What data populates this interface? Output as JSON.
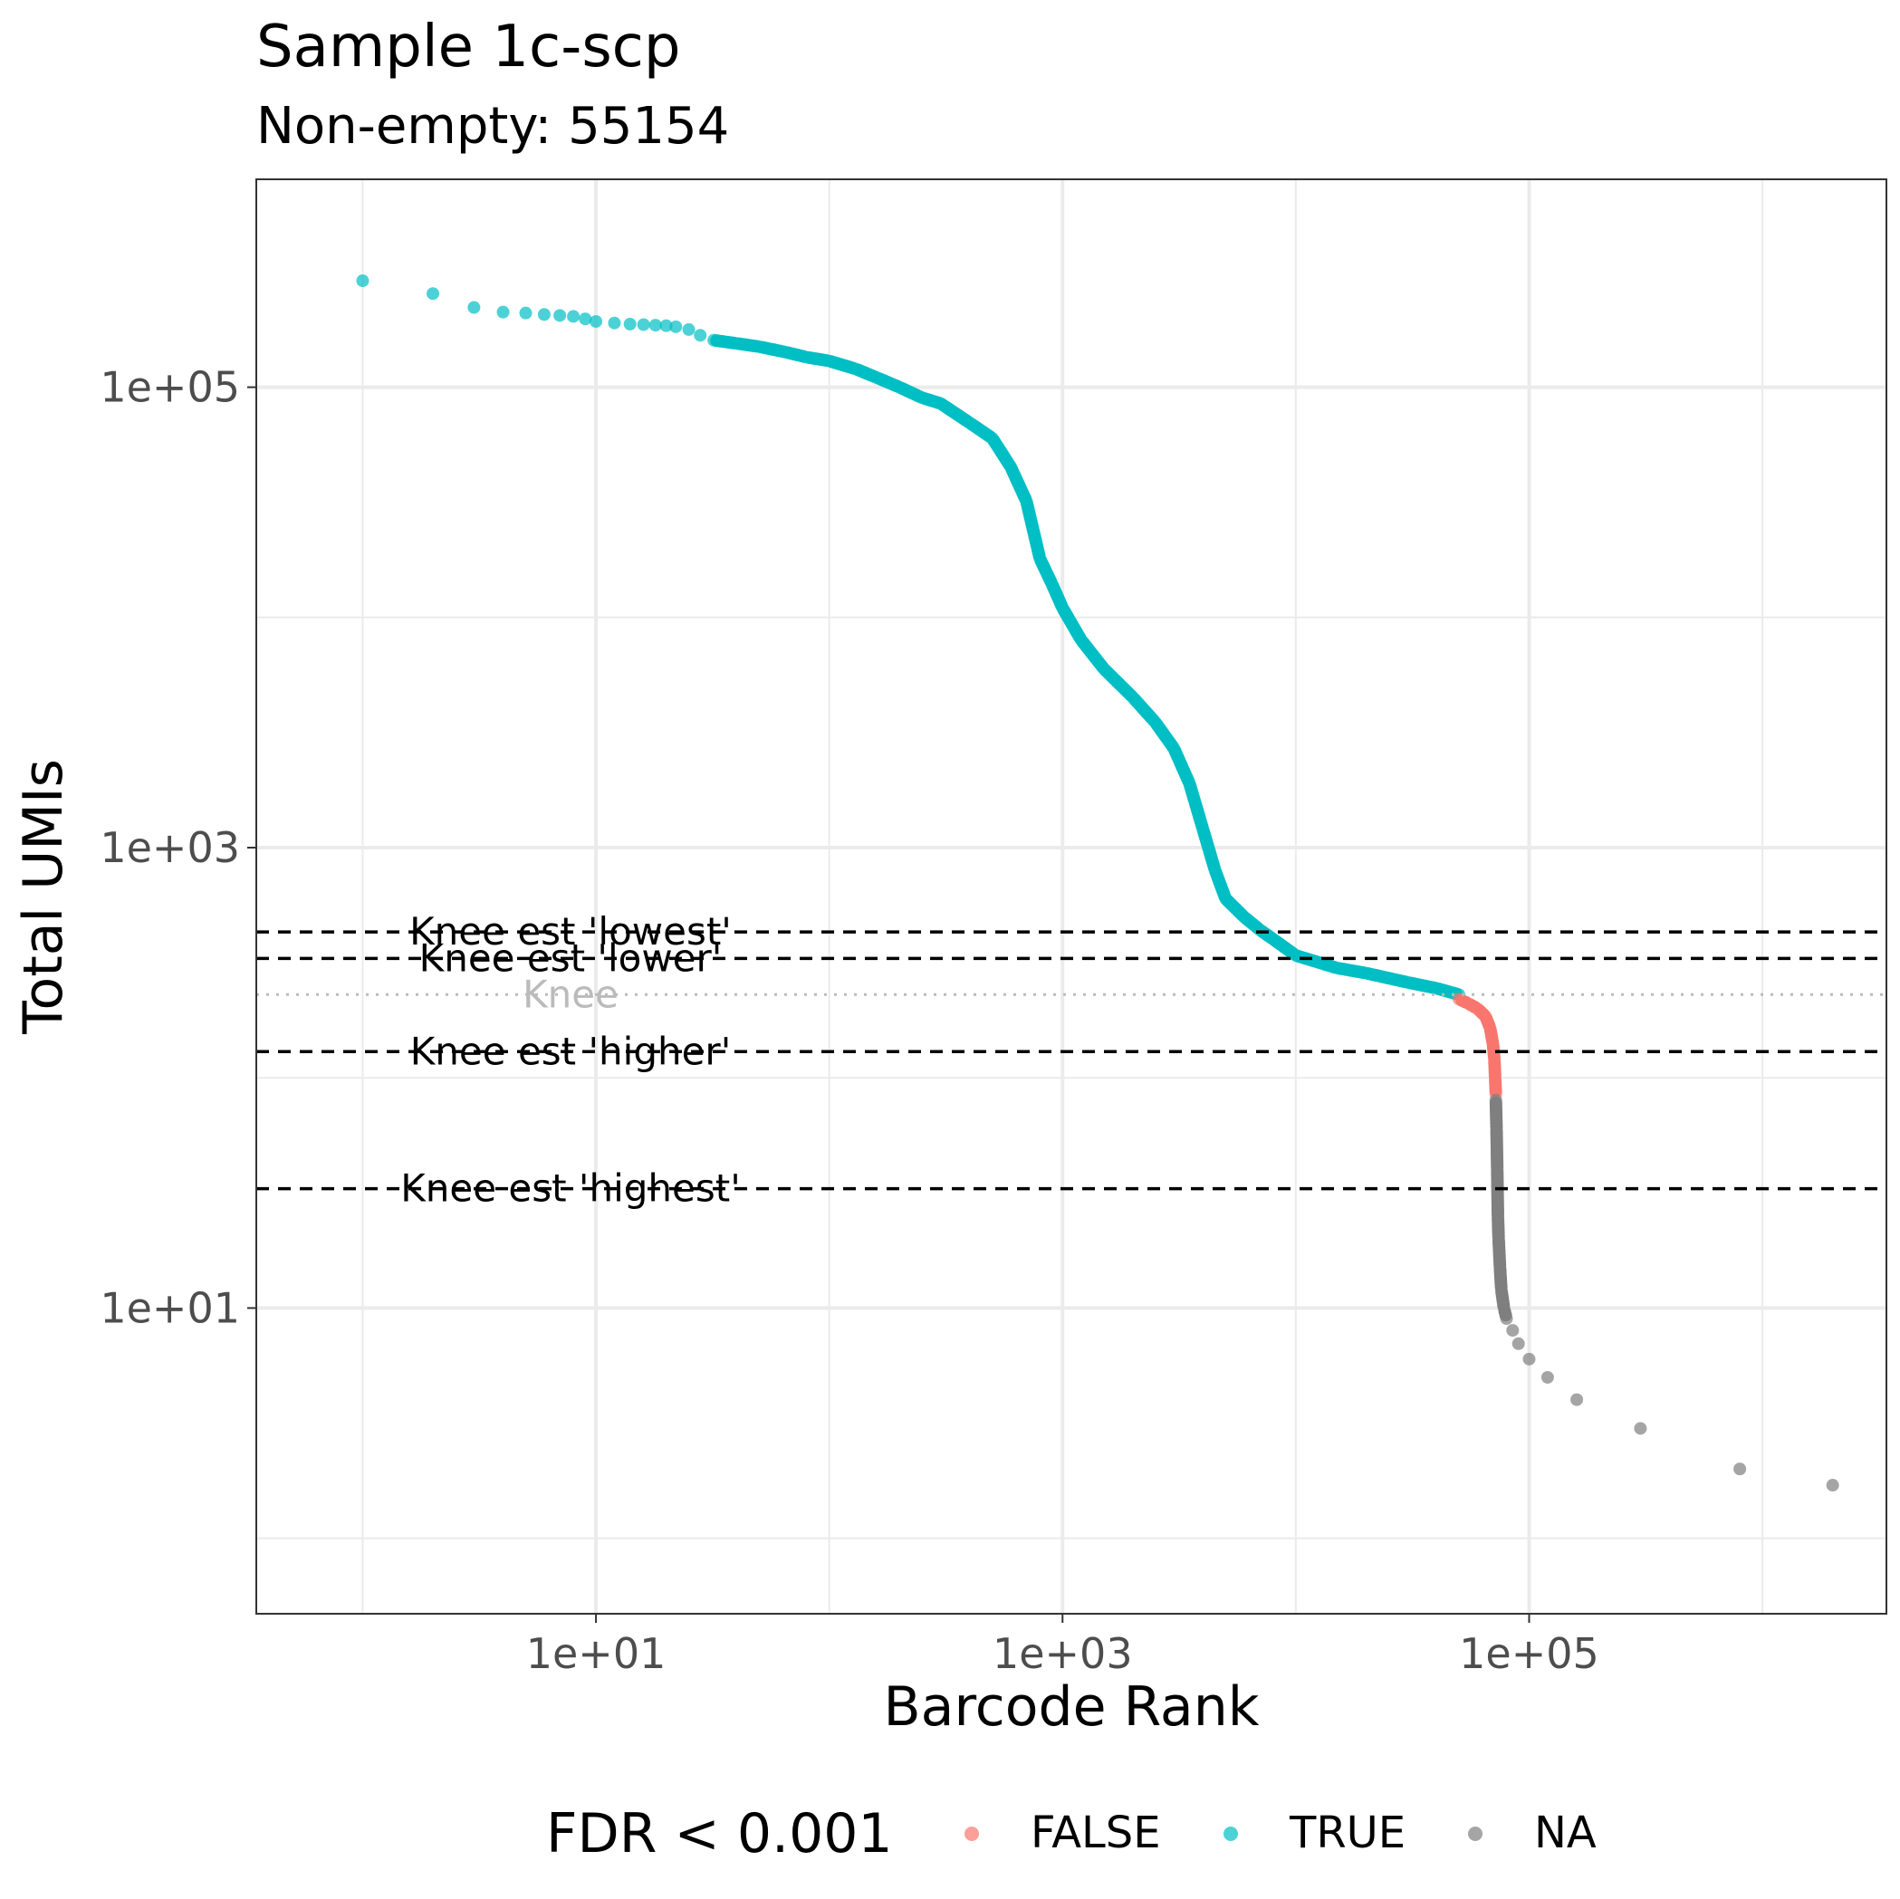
{
  "chart_data": {
    "type": "scatter",
    "title": "Sample 1c-scp",
    "subtitle": "Non-empty: 55154",
    "xlabel": "Barcode Rank",
    "ylabel": "Total UMIs",
    "x_scale": "log10",
    "y_scale": "log10",
    "xlim": [
      0.35,
      3400000
    ],
    "ylim": [
      0.47,
      800000
    ],
    "x_ticks": [
      {
        "value": 10,
        "label": "1e+01"
      },
      {
        "value": 1000,
        "label": "1e+03"
      },
      {
        "value": 100000,
        "label": "1e+05"
      }
    ],
    "y_ticks": [
      {
        "value": 10,
        "label": "1e+01"
      },
      {
        "value": 1000,
        "label": "1e+03"
      },
      {
        "value": 100000,
        "label": "1e+05"
      }
    ],
    "grid": true,
    "legend": {
      "title": "FDR < 0.001",
      "position": "bottom",
      "entries": [
        {
          "label": "FALSE",
          "color": "#F8766D"
        },
        {
          "label": "TRUE",
          "color": "#00BFC4"
        },
        {
          "label": "NA",
          "color": "#7F7F7F"
        }
      ]
    },
    "series": [
      {
        "name": "TRUE",
        "color": "#00BFC4",
        "points": [
          [
            1,
            290000
          ],
          [
            2,
            255000
          ],
          [
            3,
            222000
          ],
          [
            4,
            212000
          ],
          [
            5,
            210000
          ],
          [
            6,
            207000
          ],
          [
            7,
            205000
          ],
          [
            8,
            203000
          ],
          [
            9,
            198000
          ],
          [
            10,
            193000
          ],
          [
            12,
            190000
          ],
          [
            14,
            188000
          ],
          [
            16,
            187000
          ],
          [
            18,
            186000
          ],
          [
            20,
            185000
          ],
          [
            22,
            183000
          ],
          [
            25,
            178000
          ],
          [
            28,
            168000
          ],
          [
            32,
            160000
          ],
          [
            40,
            155000
          ],
          [
            50,
            150000
          ],
          [
            65,
            142000
          ],
          [
            80,
            135000
          ],
          [
            100,
            130000
          ],
          [
            130,
            120000
          ],
          [
            160,
            110000
          ],
          [
            200,
            100000
          ],
          [
            250,
            90000
          ],
          [
            300,
            85000
          ],
          [
            400,
            70000
          ],
          [
            500,
            60000
          ],
          [
            600,
            45000
          ],
          [
            700,
            32000
          ],
          [
            800,
            18000
          ],
          [
            900,
            14000
          ],
          [
            1000,
            11000
          ],
          [
            1200,
            8000
          ],
          [
            1500,
            6000
          ],
          [
            2000,
            4500
          ],
          [
            2500,
            3500
          ],
          [
            3000,
            2700
          ],
          [
            3500,
            1900
          ],
          [
            4000,
            1200
          ],
          [
            4500,
            800
          ],
          [
            5000,
            600
          ],
          [
            6000,
            500
          ],
          [
            7000,
            440
          ],
          [
            8000,
            400
          ],
          [
            10000,
            340
          ],
          [
            15000,
            300
          ],
          [
            20000,
            285
          ],
          [
            30000,
            260
          ],
          [
            40000,
            245
          ],
          [
            50000,
            230
          ]
        ]
      },
      {
        "name": "FALSE",
        "color": "#F8766D",
        "points": [
          [
            50000,
            220
          ],
          [
            55000,
            210
          ],
          [
            60000,
            200
          ],
          [
            65000,
            185
          ],
          [
            68000,
            165
          ],
          [
            70000,
            140
          ],
          [
            71000,
            120
          ],
          [
            71500,
            100
          ],
          [
            72000,
            85
          ]
        ]
      },
      {
        "name": "NA",
        "color": "#7F7F7F",
        "points": [
          [
            72000,
            80
          ],
          [
            72500,
            60
          ],
          [
            73000,
            40
          ],
          [
            73500,
            25
          ],
          [
            74000,
            20
          ],
          [
            75000,
            15
          ],
          [
            76000,
            12
          ],
          [
            78000,
            10
          ],
          [
            80000,
            9
          ],
          [
            85000,
            8
          ],
          [
            90000,
            7
          ],
          [
            100000,
            6
          ],
          [
            120000,
            5
          ],
          [
            160000,
            4
          ],
          [
            300000,
            3
          ],
          [
            800000,
            2
          ],
          [
            2000000,
            1.7
          ]
        ]
      }
    ],
    "reference_lines": [
      {
        "y": 430,
        "style": "dashed",
        "label": "Knee est 'lowest'"
      },
      {
        "y": 330,
        "style": "dashed",
        "label": "Knee est 'lower'"
      },
      {
        "y": 130,
        "style": "dashed",
        "label": "Knee est 'higher'"
      },
      {
        "y": 33,
        "style": "dashed",
        "label": "Knee est 'highest'"
      },
      {
        "y": 230,
        "style": "dotted",
        "label": "Knee"
      }
    ]
  }
}
